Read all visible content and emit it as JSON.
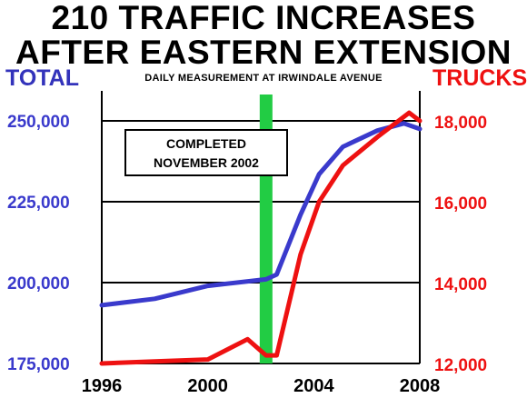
{
  "chart_data": {
    "type": "line",
    "title": [
      "210 TRAFFIC INCREASES",
      "AFTER EASTERN EXTENSION"
    ],
    "subtitle": "DAILY MEASUREMENT AT IRWINDALE AVENUE",
    "y_left_label": "TOTAL",
    "y_right_label": "TRUCKS",
    "annotation": [
      "COMPLETED",
      "NOVEMBER 2002"
    ],
    "x_ticks": [
      "1996",
      "2000",
      "2004",
      "2008"
    ],
    "x_range": [
      1996,
      2008
    ],
    "y_left_ticks": [
      "250,000",
      "225,000",
      "200,000",
      "175,000"
    ],
    "y_left_range": [
      175000,
      250000
    ],
    "y_right_ticks": [
      "18,000",
      "16,000",
      "14,000",
      "12,000"
    ],
    "y_right_range": [
      12000,
      18000
    ],
    "grid": "horizontal",
    "marker_x": 2002.2,
    "series": [
      {
        "axis": "left",
        "color": "#3a3acc",
        "points": [
          [
            1996,
            193000
          ],
          [
            1998,
            195000
          ],
          [
            2000,
            199000
          ],
          [
            2002.2,
            201000
          ],
          [
            2002.6,
            202500
          ],
          [
            2003.5,
            221000
          ],
          [
            2004.2,
            233500
          ],
          [
            2005.1,
            242000
          ],
          [
            2006.4,
            247000
          ],
          [
            2007.4,
            249200
          ],
          [
            2008,
            247500
          ]
        ]
      },
      {
        "axis": "right",
        "color": "#ee1111",
        "points": [
          [
            1996,
            12000
          ],
          [
            1998,
            12050
          ],
          [
            2000,
            12100
          ],
          [
            2001.5,
            12600
          ],
          [
            2002.2,
            12200
          ],
          [
            2002.6,
            12200
          ],
          [
            2003.5,
            14700
          ],
          [
            2004.2,
            16000
          ],
          [
            2005.1,
            16900
          ],
          [
            2006.4,
            17600
          ],
          [
            2007.6,
            18200
          ],
          [
            2008,
            18000
          ]
        ]
      }
    ],
    "colors": {
      "total": "#3a3acc",
      "trucks": "#ee1111",
      "marker": "#22cc44",
      "grid": "#000000"
    }
  }
}
